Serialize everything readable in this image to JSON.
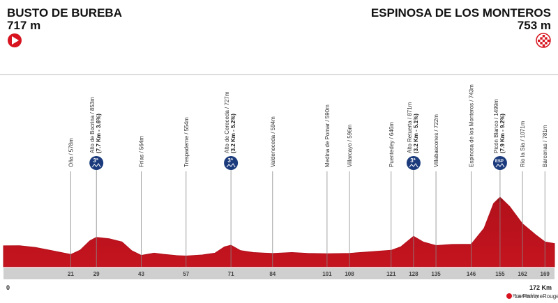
{
  "header": {
    "start_name": "BUSTO DE BUREBA",
    "start_elevation": "717 m",
    "end_name": "ESPINOSA DE LOS MONTEROS",
    "end_elevation": "753 m",
    "powered_by": "Powered by",
    "brand": "La FlammeRouge"
  },
  "chart_data": {
    "type": "area",
    "color": "#b3111c",
    "x": [
      0,
      5,
      10,
      15,
      21,
      24,
      27,
      29,
      33,
      37,
      40,
      43,
      47,
      50,
      54,
      57,
      62,
      66,
      69,
      71,
      74,
      78,
      84,
      90,
      95,
      101,
      108,
      114,
      121,
      124,
      128,
      131,
      135,
      140,
      146,
      150,
      153,
      155,
      158,
      162,
      166,
      169,
      172
    ],
    "values": [
      717,
      720,
      690,
      640,
      578,
      650,
      800,
      853,
      830,
      780,
      640,
      564,
      600,
      580,
      560,
      554,
      570,
      600,
      700,
      727,
      640,
      610,
      594,
      610,
      595,
      590,
      596,
      620,
      646,
      700,
      871,
      780,
      722,
      740,
      743,
      1000,
      1400,
      1499,
      1350,
      1071,
      900,
      781,
      753
    ],
    "xlim": [
      0,
      172
    ],
    "ylim": [
      380,
      1870
    ],
    "xticks": [
      21,
      29,
      43,
      57,
      71,
      84,
      101,
      108,
      121,
      128,
      135,
      146,
      155,
      162,
      169
    ],
    "xaxis_ends": [
      0,
      {
        "value": 172,
        "label": "172 Km"
      }
    ],
    "waypoints": [
      {
        "label": "Oña / 578m"
      },
      {
        "label": "Alto de Bocrina / 853m",
        "detail": "(7.7 Km - 3.6%)",
        "category": "3ª"
      },
      {
        "label": "Frías / 564m"
      },
      {
        "label": "Trespaderne / 554m"
      },
      {
        "label": "Alto de Cereceda / 727m",
        "detail": "(3.2 Km - 5.2%)",
        "category": "3ª"
      },
      {
        "label": "Valdenoceda / 594m"
      },
      {
        "label": "Medina de Pomar / 590m"
      },
      {
        "label": "Villarcayo / 596m"
      },
      {
        "label": "Puentedey / 646m"
      },
      {
        "label": "Alto Retuerta / 871m",
        "detail": "(3.2 Km - 5.1%)",
        "category": "3ª"
      },
      {
        "label": "Villabascones / 722m"
      },
      {
        "label": "Espinosa de los Monteros / 743m"
      },
      {
        "label": "Picón Blanco / 1499m",
        "detail": "(7.9 Km - 9.2%)",
        "category": "ESP"
      },
      {
        "label": "Río la Sía / 1071m"
      },
      {
        "label": "Bárcenas / 781m"
      }
    ]
  }
}
